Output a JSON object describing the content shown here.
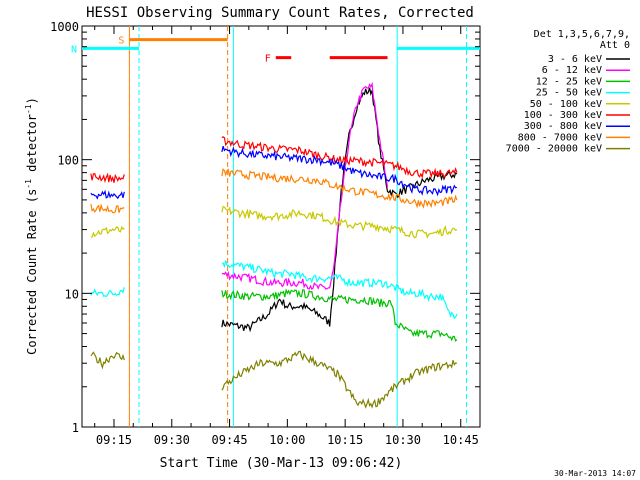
{
  "chart_data": {
    "type": "line",
    "title": "HESSI Observing Summary Count Rates, Corrected",
    "xlabel": "Start Time (30-Mar-13 09:06:42)",
    "ylabel_main": "Corrected Count Rate (s",
    "ylabel_sup1": "-1",
    "ylabel_mid": " detector",
    "ylabel_sup2": "-1",
    "ylabel_end": ")",
    "y_scale": "log",
    "xlim_minutes": [
      546.7,
      650.0
    ],
    "ylim": [
      1,
      1000
    ],
    "x_ticks": [
      {
        "t": 555,
        "label": "09:15"
      },
      {
        "t": 570,
        "label": "09:30"
      },
      {
        "t": 585,
        "label": "09:45"
      },
      {
        "t": 600,
        "label": "10:00"
      },
      {
        "t": 615,
        "label": "10:15"
      },
      {
        "t": 630,
        "label": "10:30"
      },
      {
        "t": 645,
        "label": "10:45"
      }
    ],
    "y_ticks": [
      {
        "v": 1,
        "label": "1"
      },
      {
        "v": 10,
        "label": "10"
      },
      {
        "v": 100,
        "label": "100"
      },
      {
        "v": 1000,
        "label": "1000"
      }
    ],
    "legend_header": [
      "Det 1,3,5,6,7,9,",
      "Att 0"
    ],
    "legend_position": "right",
    "timestamp": "30-Mar-2013 14:07",
    "series": [
      {
        "name": "3 - 6 keV",
        "color": "#000000",
        "points": [
          [
            583,
            6
          ],
          [
            590,
            5.5
          ],
          [
            595,
            7
          ],
          [
            598,
            9
          ],
          [
            600,
            8
          ],
          [
            604,
            8
          ],
          [
            608,
            7
          ],
          [
            611,
            6
          ],
          [
            612,
            12
          ],
          [
            614,
            60
          ],
          [
            616,
            150
          ],
          [
            618,
            250
          ],
          [
            620,
            320
          ],
          [
            622,
            330
          ],
          [
            624,
            120
          ],
          [
            626,
            60
          ],
          [
            628,
            55
          ],
          [
            632,
            62
          ],
          [
            636,
            70
          ],
          [
            640,
            75
          ],
          [
            644,
            78
          ]
        ]
      },
      {
        "name": "6 - 12 keV",
        "color": "#ff00ff",
        "points": [
          [
            583,
            14
          ],
          [
            590,
            13
          ],
          [
            596,
            12
          ],
          [
            600,
            12
          ],
          [
            604,
            12
          ],
          [
            608,
            11
          ],
          [
            611,
            11
          ],
          [
            612,
            15
          ],
          [
            614,
            50
          ],
          [
            616,
            140
          ],
          [
            618,
            260
          ],
          [
            620,
            340
          ],
          [
            622,
            350
          ],
          [
            624,
            140
          ],
          [
            626,
            62
          ]
        ]
      },
      {
        "name": "12 - 25 keV",
        "color": "#00c000",
        "points": [
          [
            583,
            10
          ],
          [
            590,
            9.5
          ],
          [
            596,
            9.5
          ],
          [
            600,
            10
          ],
          [
            604,
            10
          ],
          [
            608,
            9.5
          ],
          [
            612,
            9
          ],
          [
            616,
            9
          ],
          [
            620,
            9
          ],
          [
            624,
            8.5
          ],
          [
            627,
            8.5
          ],
          [
            628,
            6
          ],
          [
            632,
            5
          ],
          [
            636,
            5
          ],
          [
            640,
            5
          ],
          [
            644,
            4.5
          ]
        ]
      },
      {
        "name": "25 - 50 keV",
        "color": "#00ffff",
        "points": [
          [
            549,
            10
          ],
          [
            552,
            10
          ],
          [
            555,
            10
          ],
          [
            558,
            11
          ],
          [
            583,
            17
          ],
          [
            588,
            16
          ],
          [
            593,
            15
          ],
          [
            597,
            14
          ],
          [
            601,
            14
          ],
          [
            605,
            13
          ],
          [
            609,
            13
          ],
          [
            613,
            13
          ],
          [
            617,
            12
          ],
          [
            621,
            12
          ],
          [
            625,
            12
          ],
          [
            628,
            11
          ],
          [
            631,
            10
          ],
          [
            634,
            10
          ],
          [
            637,
            9.5
          ],
          [
            640,
            9.5
          ],
          [
            642,
            7
          ],
          [
            644,
            7
          ]
        ]
      },
      {
        "name": "50 - 100 keV",
        "color": "#c8c800",
        "points": [
          [
            549,
            28
          ],
          [
            552,
            29
          ],
          [
            555,
            30
          ],
          [
            558,
            29
          ],
          [
            583,
            42
          ],
          [
            588,
            40
          ],
          [
            593,
            38
          ],
          [
            598,
            38
          ],
          [
            603,
            40
          ],
          [
            608,
            38
          ],
          [
            613,
            34
          ],
          [
            618,
            32
          ],
          [
            623,
            32
          ],
          [
            628,
            30
          ],
          [
            633,
            28
          ],
          [
            638,
            28
          ],
          [
            642,
            30
          ],
          [
            644,
            30
          ]
        ]
      },
      {
        "name": "100 - 300 keV",
        "color": "#ff0000",
        "points": [
          [
            549,
            75
          ],
          [
            552,
            74
          ],
          [
            555,
            72
          ],
          [
            558,
            73
          ],
          [
            583,
            140
          ],
          [
            588,
            130
          ],
          [
            593,
            125
          ],
          [
            598,
            120
          ],
          [
            603,
            118
          ],
          [
            608,
            108
          ],
          [
            613,
            100
          ],
          [
            618,
            98
          ],
          [
            623,
            95
          ],
          [
            628,
            90
          ],
          [
            633,
            80
          ],
          [
            638,
            78
          ],
          [
            644,
            80
          ]
        ]
      },
      {
        "name": "300 - 800 keV",
        "color": "#0000ff",
        "points": [
          [
            549,
            55
          ],
          [
            552,
            55
          ],
          [
            555,
            54
          ],
          [
            558,
            55
          ],
          [
            583,
            120
          ],
          [
            588,
            112
          ],
          [
            593,
            108
          ],
          [
            598,
            105
          ],
          [
            603,
            102
          ],
          [
            608,
            100
          ],
          [
            613,
            92
          ],
          [
            618,
            80
          ],
          [
            623,
            75
          ],
          [
            628,
            72
          ],
          [
            633,
            60
          ],
          [
            638,
            58
          ],
          [
            644,
            62
          ]
        ]
      },
      {
        "name": "800 - 7000 keV",
        "color": "#ff8000",
        "points": [
          [
            549,
            44
          ],
          [
            552,
            43
          ],
          [
            555,
            42
          ],
          [
            558,
            43
          ],
          [
            583,
            80
          ],
          [
            588,
            78
          ],
          [
            593,
            75
          ],
          [
            598,
            73
          ],
          [
            603,
            72
          ],
          [
            608,
            70
          ],
          [
            613,
            63
          ],
          [
            618,
            58
          ],
          [
            623,
            55
          ],
          [
            628,
            52
          ],
          [
            633,
            48
          ],
          [
            638,
            47
          ],
          [
            644,
            50
          ]
        ]
      },
      {
        "name": "7000 - 20000 keV",
        "color": "#808000",
        "points": [
          [
            549,
            3.5
          ],
          [
            552,
            3
          ],
          [
            555,
            3.5
          ],
          [
            558,
            3.2
          ],
          [
            583,
            2
          ],
          [
            588,
            2.5
          ],
          [
            593,
            3
          ],
          [
            598,
            3
          ],
          [
            603,
            3.5
          ],
          [
            608,
            3
          ],
          [
            613,
            2.5
          ],
          [
            618,
            1.5
          ],
          [
            623,
            1.5
          ],
          [
            628,
            2
          ],
          [
            633,
            2.5
          ],
          [
            638,
            2.8
          ],
          [
            644,
            3
          ]
        ]
      }
    ],
    "flags": [
      {
        "label": "S",
        "color": "#ff8000",
        "level": 790,
        "start": 559,
        "end": 584.5
      },
      {
        "label": "N",
        "color": "#00ffff",
        "level": 680,
        "start": 546.7,
        "end": 561.5
      },
      {
        "label": "",
        "color": "#00ffff",
        "level": 680,
        "start": 628.5,
        "end": 650
      },
      {
        "label": "F",
        "color": "#ff0000",
        "level": 580,
        "start": 597,
        "end": 601
      },
      {
        "label": "",
        "color": "#ff0000",
        "level": 580,
        "start": 611,
        "end": 626
      }
    ],
    "vlines": [
      {
        "t": 559,
        "color": "#ff8000",
        "style": "solid"
      },
      {
        "t": 561.5,
        "color": "#00ffff",
        "style": "dashed"
      },
      {
        "t": 584.5,
        "color": "#ff8000",
        "style": "dashed"
      },
      {
        "t": 586,
        "color": "#00ffff",
        "style": "solid"
      },
      {
        "t": 628.5,
        "color": "#00ffff",
        "style": "solid"
      },
      {
        "t": 646.5,
        "color": "#00ffff",
        "style": "dashed"
      }
    ],
    "gaps": [
      [
        559,
        583
      ]
    ]
  }
}
